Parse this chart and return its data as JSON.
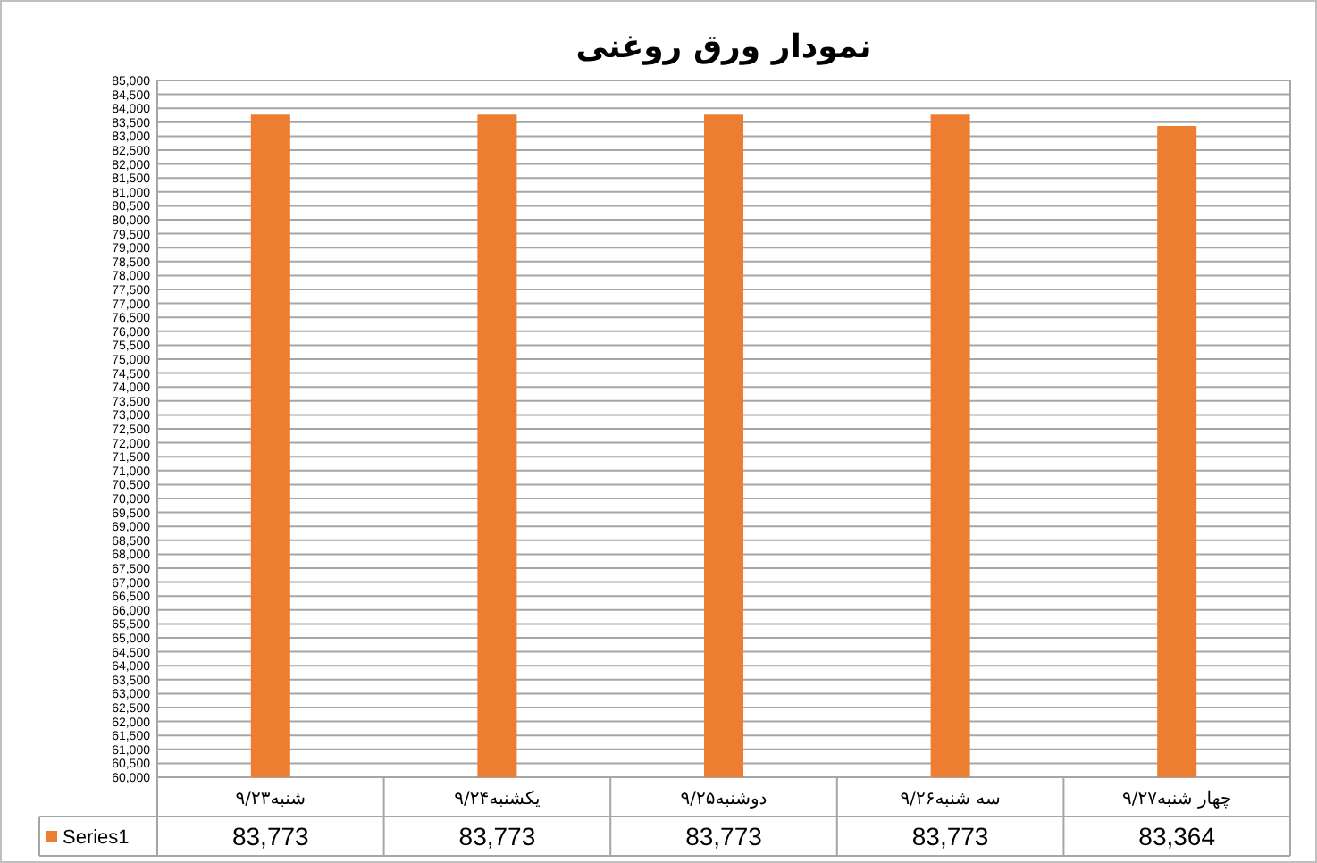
{
  "chart_data": {
    "type": "bar",
    "title": "نمودار ورق روغنی",
    "categories": [
      "شنبه۹/۲۳",
      "یکشنبه۹/۲۴",
      "دوشنبه۹/۲۵",
      "سه شنبه۹/۲۶",
      "چهار شنبه۹/۲۷"
    ],
    "series": [
      {
        "name": "Series1",
        "color": "#ed7d31",
        "values": [
          83773,
          83773,
          83773,
          83773,
          83364
        ],
        "value_labels": [
          "83,773",
          "83,773",
          "83,773",
          "83,773",
          "83,364"
        ]
      }
    ],
    "ylim": [
      60000,
      85000
    ],
    "yticks": [
      {
        "value": 60000,
        "label": "60,000"
      },
      {
        "value": 60500,
        "label": "60,500"
      },
      {
        "value": 61000,
        "label": "61,000"
      },
      {
        "value": 61500,
        "label": "61,500"
      },
      {
        "value": 62000,
        "label": "62,000"
      },
      {
        "value": 62500,
        "label": "62,500"
      },
      {
        "value": 63000,
        "label": "63,000"
      },
      {
        "value": 63500,
        "label": "63,500"
      },
      {
        "value": 64000,
        "label": "64,000"
      },
      {
        "value": 64500,
        "label": "64,500"
      },
      {
        "value": 65000,
        "label": "65,000"
      },
      {
        "value": 65500,
        "label": "65,500"
      },
      {
        "value": 66000,
        "label": "66,000"
      },
      {
        "value": 66500,
        "label": "66,500"
      },
      {
        "value": 67000,
        "label": "67,000"
      },
      {
        "value": 67500,
        "label": "67,500"
      },
      {
        "value": 68000,
        "label": "68,000"
      },
      {
        "value": 68500,
        "label": "68,500"
      },
      {
        "value": 69000,
        "label": "69,000"
      },
      {
        "value": 69500,
        "label": "69,500"
      },
      {
        "value": 70000,
        "label": "70,000"
      },
      {
        "value": 70500,
        "label": "70,500"
      },
      {
        "value": 71000,
        "label": "71,000"
      },
      {
        "value": 71500,
        "label": "71,500"
      },
      {
        "value": 72000,
        "label": "72,000"
      },
      {
        "value": 72500,
        "label": "72,500"
      },
      {
        "value": 73000,
        "label": "73,000"
      },
      {
        "value": 73500,
        "label": "73,500"
      },
      {
        "value": 74000,
        "label": "74,000"
      },
      {
        "value": 74500,
        "label": "74,500"
      },
      {
        "value": 75000,
        "label": "75,000"
      },
      {
        "value": 75500,
        "label": "75,500"
      },
      {
        "value": 76000,
        "label": "76,000"
      },
      {
        "value": 76500,
        "label": "76,500"
      },
      {
        "value": 77000,
        "label": "77,000"
      },
      {
        "value": 77500,
        "label": "77,500"
      },
      {
        "value": 78000,
        "label": "78,000"
      },
      {
        "value": 78500,
        "label": "78,500"
      },
      {
        "value": 79000,
        "label": "79,000"
      },
      {
        "value": 79500,
        "label": "79,500"
      },
      {
        "value": 80000,
        "label": "80,000"
      },
      {
        "value": 80500,
        "label": "80,500"
      },
      {
        "value": 81000,
        "label": "81,000"
      },
      {
        "value": 81500,
        "label": "81,500"
      },
      {
        "value": 82000,
        "label": "82,000"
      },
      {
        "value": 82500,
        "label": "82,500"
      },
      {
        "value": 83000,
        "label": "83,000"
      },
      {
        "value": 83500,
        "label": "83,500"
      },
      {
        "value": 84000,
        "label": "84,000"
      },
      {
        "value": 84500,
        "label": "84,500"
      },
      {
        "value": 85000,
        "label": "85,000"
      }
    ],
    "grid": "y",
    "legend": "bottom"
  }
}
